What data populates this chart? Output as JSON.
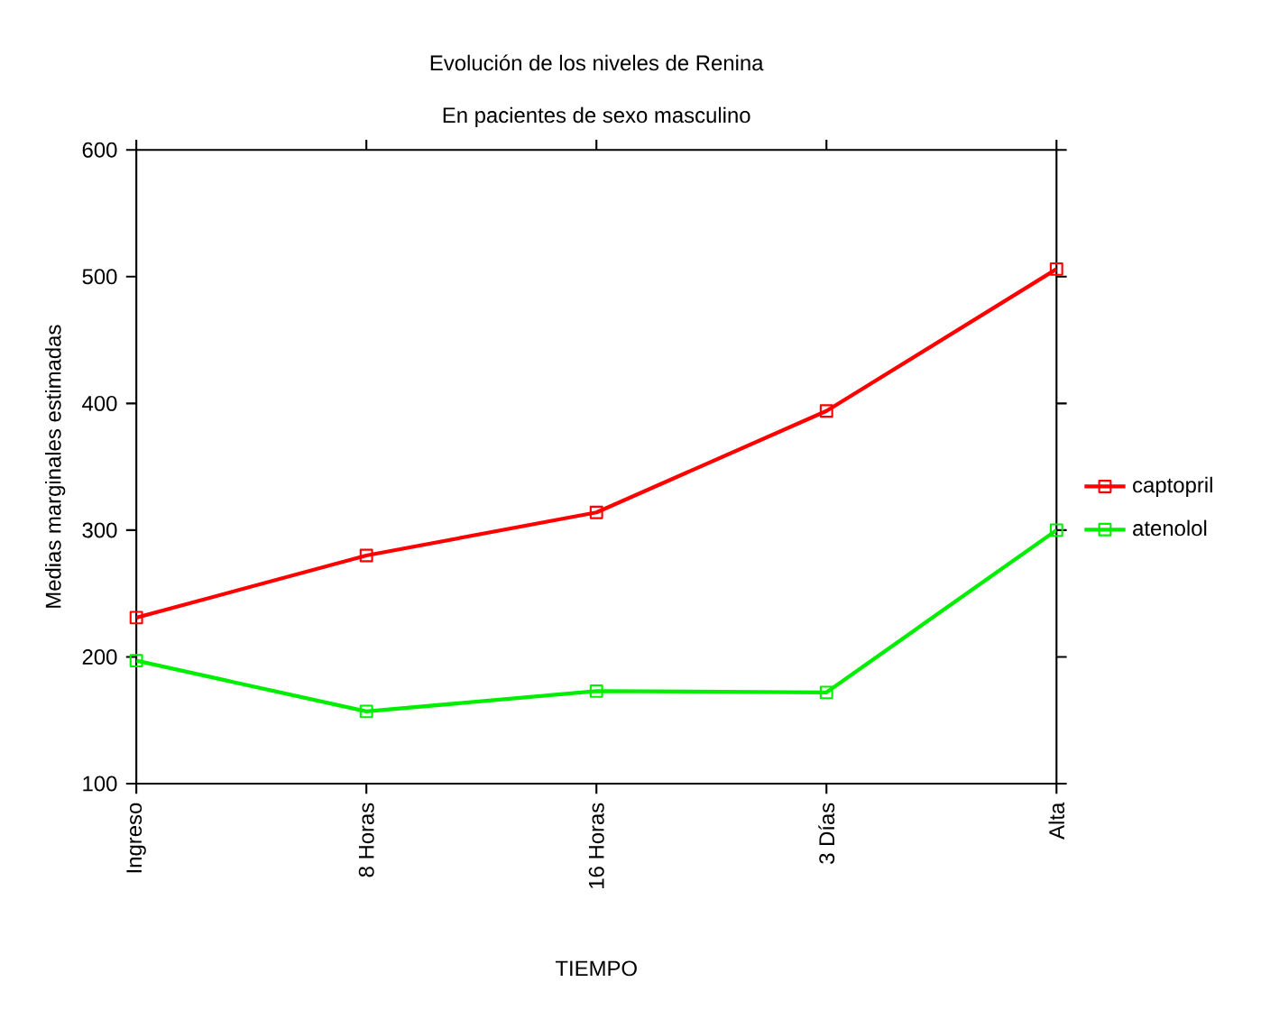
{
  "chart_data": {
    "type": "line",
    "title": "Evolución de los niveles de Renina",
    "subtitle": "En pacientes de sexo masculino",
    "xlabel": "TIEMPO",
    "ylabel": "Medias marginales estimadas",
    "categories": [
      "Ingreso",
      "8 Horas",
      "16 Horas",
      "3 Días",
      "Alta"
    ],
    "series": [
      {
        "name": "captopril",
        "color": "#ff0000",
        "values": [
          231,
          280,
          314,
          394,
          506
        ]
      },
      {
        "name": "atenolol",
        "color": "#00ee00",
        "values": [
          197,
          157,
          173,
          172,
          300
        ]
      }
    ],
    "ylim": [
      100,
      600
    ],
    "yticks": [
      100,
      200,
      300,
      400,
      500,
      600
    ],
    "grid": false,
    "legend": "right",
    "marker": "square",
    "line_style": "solid"
  }
}
